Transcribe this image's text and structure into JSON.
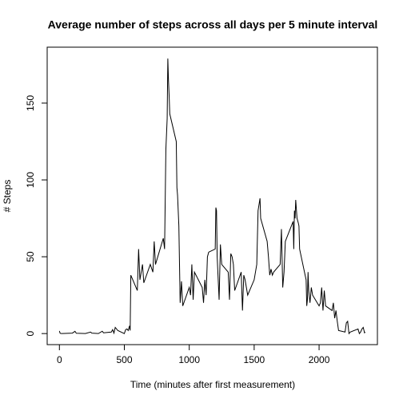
{
  "chart_data": {
    "type": "line",
    "title": "Average number of steps across all days per 5 minute interval",
    "x_label": "Time (minutes after first measurement)",
    "y_label": "# Steps",
    "x": [
      0,
      5,
      10,
      20,
      40,
      100,
      120,
      130,
      200,
      240,
      250,
      300,
      330,
      340,
      400,
      410,
      420,
      430,
      440,
      450,
      500,
      510,
      520,
      530,
      540,
      545,
      550,
      600,
      610,
      620,
      640,
      650,
      700,
      720,
      730,
      740,
      800,
      810,
      820,
      830,
      835,
      840,
      845,
      850,
      900,
      905,
      910,
      920,
      930,
      940,
      950,
      1000,
      1010,
      1020,
      1030,
      1040,
      1100,
      1110,
      1120,
      1130,
      1140,
      1150,
      1200,
      1205,
      1210,
      1215,
      1230,
      1240,
      1250,
      1300,
      1310,
      1320,
      1330,
      1340,
      1350,
      1400,
      1410,
      1420,
      1430,
      1450,
      1500,
      1510,
      1520,
      1530,
      1545,
      1550,
      1600,
      1610,
      1620,
      1630,
      1640,
      1650,
      1700,
      1710,
      1720,
      1730,
      1740,
      1800,
      1805,
      1810,
      1815,
      1820,
      1830,
      1840,
      1845,
      1850,
      1900,
      1905,
      1910,
      1915,
      1920,
      1930,
      1940,
      1950,
      2000,
      2010,
      2020,
      2030,
      2040,
      2050,
      2100,
      2110,
      2120,
      2130,
      2140,
      2150,
      2200,
      2210,
      2220,
      2230,
      2240,
      2300,
      2310,
      2320,
      2330,
      2340,
      2350,
      2355
    ],
    "series": [
      {
        "name": "steps",
        "color": "#000000",
        "values": [
          1.7,
          0.3,
          0.1,
          0,
          0.1,
          0.3,
          1.5,
          0.2,
          0,
          1,
          0.3,
          0,
          1.5,
          0.5,
          1,
          2.6,
          0.3,
          4,
          3,
          2,
          0,
          2.5,
          3,
          2,
          5,
          2,
          38,
          28,
          55,
          35,
          45,
          33,
          45,
          40,
          60,
          45,
          62,
          55,
          120,
          140,
          179,
          165,
          155,
          143,
          125,
          95,
          90,
          70,
          20,
          34,
          18,
          30,
          25,
          45,
          22,
          40,
          30,
          20,
          35,
          25,
          50,
          53,
          55,
          82,
          80,
          50,
          22,
          58,
          45,
          40,
          22,
          52,
          50,
          45,
          28,
          40,
          15,
          38,
          35,
          25,
          35,
          40,
          45,
          80,
          88,
          75,
          60,
          50,
          38,
          42,
          38,
          40,
          45,
          68,
          30,
          40,
          60,
          73,
          55,
          80,
          75,
          87,
          75,
          72,
          70,
          55,
          35,
          18,
          22,
          40,
          28,
          20,
          30,
          25,
          18,
          20,
          30,
          15,
          28,
          18,
          15,
          20,
          10,
          15,
          8,
          2,
          1,
          7,
          8,
          0,
          1,
          3,
          0,
          1,
          3,
          4,
          0.5,
          1
        ]
      }
    ],
    "xlim": [
      -94.2,
      2449.2
    ],
    "ylim": [
      -7.2,
      186.4
    ],
    "xticks": [
      0,
      500,
      1000,
      1500,
      2000
    ],
    "yticks": [
      0,
      50,
      100,
      150
    ],
    "grid": false
  }
}
